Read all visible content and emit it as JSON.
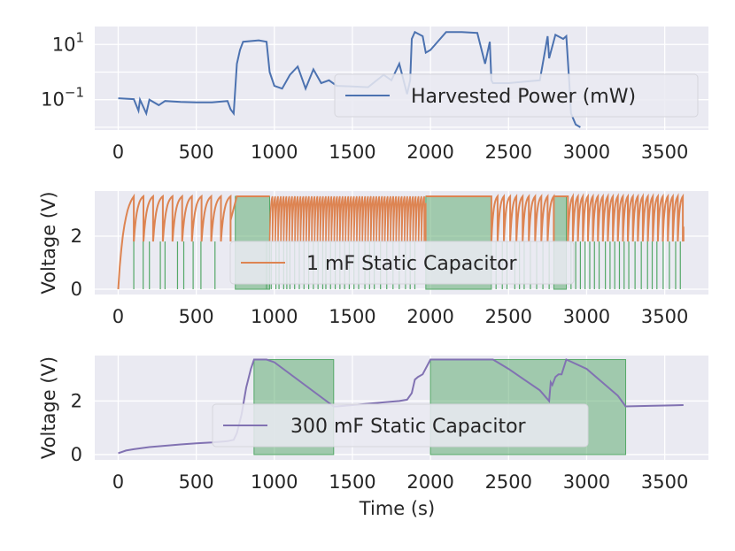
{
  "chart_data": [
    {
      "type": "line",
      "id": "power",
      "title": "",
      "xlabel": "",
      "ylabel": "",
      "yscale": "log",
      "xlim": [
        -150,
        3780
      ],
      "ylim_log10": [
        -2.1,
        1.65
      ],
      "xticks": [
        "0",
        "500",
        "1000",
        "1500",
        "2000",
        "2500",
        "3000",
        "3500"
      ],
      "yticks": [
        {
          "exp": -1,
          "base": "10",
          "label": "10",
          "sup": "−1"
        },
        {
          "exp": 1,
          "base": "10",
          "label": "10",
          "sup": "1"
        }
      ],
      "legend": {
        "label": "Harvested Power (mW)",
        "position": "lower-right"
      },
      "series": [
        {
          "name": "Harvested Power (mW)",
          "color": "#4c72b0",
          "x": [
            0,
            100,
            130,
            140,
            180,
            200,
            260,
            300,
            400,
            500,
            600,
            700,
            720,
            740,
            760,
            780,
            800,
            900,
            950,
            970,
            1000,
            1050,
            1100,
            1150,
            1200,
            1250,
            1300,
            1350,
            1400,
            1500,
            1600,
            1700,
            1750,
            1800,
            1850,
            1870,
            1880,
            1900,
            1950,
            1970,
            2000,
            2100,
            2200,
            2300,
            2350,
            2380,
            2390,
            2400,
            2500,
            2600,
            2700,
            2750,
            2760,
            2800,
            2850,
            2870,
            2890,
            2900,
            2930,
            2960
          ],
          "log10": [
            -0.95,
            -0.98,
            -1.4,
            -1.0,
            -1.5,
            -1.0,
            -1.2,
            -1.05,
            -1.08,
            -1.1,
            -1.1,
            -1.05,
            -1.35,
            -1.5,
            0.3,
            0.8,
            1.1,
            1.15,
            1.1,
            0.0,
            -0.5,
            -0.6,
            -0.1,
            0.2,
            -0.6,
            0.1,
            -0.4,
            -0.3,
            -0.5,
            -0.52,
            -0.55,
            -0.1,
            -0.3,
            0.3,
            -0.8,
            -0.3,
            1.2,
            1.45,
            1.3,
            0.7,
            0.8,
            1.45,
            1.45,
            1.42,
            0.3,
            1.1,
            -0.3,
            -0.4,
            -0.4,
            -0.35,
            -0.3,
            1.3,
            0.5,
            1.35,
            1.2,
            1.3,
            -0.5,
            -1.5,
            -1.9,
            -2.0
          ]
        }
      ]
    },
    {
      "type": "line",
      "id": "cap1mF",
      "title": "",
      "xlabel": "",
      "ylabel": "Voltage (V)",
      "xlim": [
        -150,
        3780
      ],
      "ylim": [
        -0.2,
        3.7
      ],
      "xticks": [
        "0",
        "500",
        "1000",
        "1500",
        "2000",
        "2500",
        "3000",
        "3500"
      ],
      "yticks": [
        "0",
        "2"
      ],
      "legend": {
        "label": "1 mF Static Capacitor",
        "position": "lower-center"
      },
      "on_regions": [
        [
          750,
          970
        ],
        [
          1970,
          2390
        ],
        [
          2790,
          2870
        ]
      ],
      "green_spike_x": [
        100,
        160,
        200,
        270,
        300,
        380,
        420,
        480,
        530,
        620,
        950,
        980,
        1010,
        1030,
        1060,
        1080,
        1100,
        1130,
        1160,
        1190,
        1220,
        1250,
        1280,
        1310,
        1330,
        1360,
        1390,
        1420,
        1450,
        1480,
        1510,
        1540,
        1580,
        1610,
        1640,
        1680,
        1720,
        1760,
        1800,
        1840,
        1870,
        1900,
        2420,
        2460,
        2490,
        2540,
        2570,
        2600,
        2640,
        2680,
        2720,
        2760,
        2900,
        2930,
        2960,
        2990,
        3020,
        3050,
        3080,
        3120,
        3150,
        3180,
        3210,
        3240,
        3270,
        3310,
        3350,
        3390,
        3420,
        3450,
        3490,
        3530,
        3570,
        3600
      ],
      "series": [
        {
          "name": "1 mF Static Capacitor",
          "color": "#dd8452"
        }
      ],
      "region_color": "#55a868"
    },
    {
      "type": "line",
      "id": "cap300mF",
      "title": "",
      "xlabel": "Time (s)",
      "ylabel": "Voltage (V)",
      "xlim": [
        -150,
        3780
      ],
      "ylim": [
        -0.2,
        3.7
      ],
      "xticks": [
        "0",
        "500",
        "1000",
        "1500",
        "2000",
        "2500",
        "3000",
        "3500"
      ],
      "yticks": [
        "0",
        "2"
      ],
      "legend": {
        "label": "300 mF Static Capacitor",
        "position": "center"
      },
      "on_regions": [
        [
          870,
          1380
        ],
        [
          2000,
          3250
        ]
      ],
      "series": [
        {
          "name": "300 mF Static Capacitor",
          "color": "#8172b2",
          "x": [
            0,
            50,
            100,
            200,
            300,
            400,
            500,
            600,
            700,
            740,
            760,
            790,
            820,
            850,
            870,
            950,
            1000,
            1380,
            1400,
            1500,
            1600,
            1700,
            1800,
            1850,
            1880,
            1900,
            1920,
            1950,
            2000,
            2100,
            2300,
            2400,
            2500,
            2600,
            2700,
            2760,
            2770,
            2780,
            2800,
            2820,
            2840,
            2870,
            3000,
            3100,
            3200,
            3250,
            3400,
            3620
          ],
          "y": [
            0.05,
            0.15,
            0.2,
            0.28,
            0.33,
            0.38,
            0.42,
            0.45,
            0.5,
            0.55,
            0.8,
            1.5,
            2.5,
            3.2,
            3.55,
            3.55,
            3.45,
            1.8,
            1.8,
            1.85,
            1.9,
            1.95,
            2.0,
            2.05,
            2.3,
            2.8,
            2.9,
            3.0,
            3.55,
            3.55,
            3.55,
            3.55,
            3.2,
            2.8,
            2.4,
            2.0,
            2.7,
            2.6,
            2.9,
            3.0,
            3.0,
            3.55,
            3.2,
            2.7,
            2.2,
            1.8,
            1.82,
            1.85
          ]
        }
      ],
      "region_color": "#55a868"
    }
  ]
}
